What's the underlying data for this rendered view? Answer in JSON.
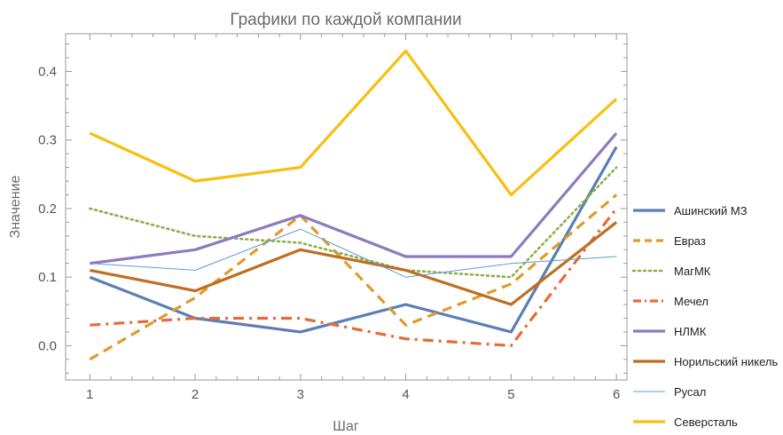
{
  "chart_data": {
    "type": "line",
    "title": "Графики по каждой компании",
    "xlabel": "Шаг",
    "ylabel": "Значение",
    "x": [
      1,
      2,
      3,
      4,
      5,
      6
    ],
    "xlim": [
      0.77,
      6.1
    ],
    "ylim": [
      -0.05,
      0.455
    ],
    "xticks": [
      "1",
      "2",
      "3",
      "4",
      "5",
      "6"
    ],
    "yticks": [
      "0.0",
      "0.1",
      "0.2",
      "0.3",
      "0.4"
    ],
    "legend_position": "right",
    "grid": false,
    "series": [
      {
        "name": "Ашинский МЗ",
        "color": "#5b7fb4",
        "style": "solid",
        "width": 3.2,
        "values": [
          0.1,
          0.04,
          0.02,
          0.06,
          0.02,
          0.29
        ]
      },
      {
        "name": "Евраз",
        "color": "#e09a2c",
        "style": "dashed",
        "width": 3.2,
        "values": [
          -0.02,
          0.07,
          0.19,
          0.03,
          0.09,
          0.22
        ]
      },
      {
        "name": "МагМК",
        "color": "#8fad4a",
        "style": "dotted",
        "width": 2.6,
        "values": [
          0.2,
          0.16,
          0.15,
          0.11,
          0.1,
          0.26
        ]
      },
      {
        "name": "Мечел",
        "color": "#e56a3c",
        "style": "dashdot",
        "width": 3.2,
        "values": [
          0.03,
          0.04,
          0.04,
          0.01,
          0.0,
          0.2
        ]
      },
      {
        "name": "НЛМК",
        "color": "#8d7bbd",
        "style": "solid",
        "width": 3.2,
        "values": [
          0.12,
          0.14,
          0.19,
          0.13,
          0.13,
          0.31
        ]
      },
      {
        "name": "Норильский никель",
        "color": "#c06d20",
        "style": "solid",
        "width": 3.2,
        "values": [
          0.11,
          0.08,
          0.14,
          0.11,
          0.06,
          0.18
        ]
      },
      {
        "name": "Русал",
        "color": "#5e9ec8",
        "style": "solid",
        "width": 1.0,
        "values": [
          0.12,
          0.11,
          0.17,
          0.1,
          0.12,
          0.13
        ]
      },
      {
        "name": "Северсталь",
        "color": "#f8bf10",
        "style": "solid",
        "width": 3.2,
        "values": [
          0.31,
          0.24,
          0.26,
          0.43,
          0.22,
          0.36
        ]
      }
    ]
  }
}
